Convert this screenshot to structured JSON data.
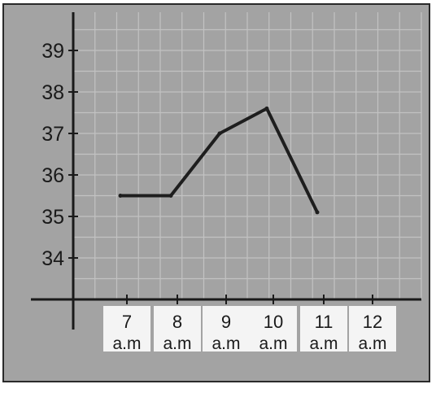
{
  "chart_data": {
    "type": "line",
    "title": "",
    "xlabel": "",
    "ylabel": "",
    "categories": [
      "7 a.m",
      "8 a.m",
      "9 a.m",
      "10 a.m",
      "11 a.m",
      "12 a.m"
    ],
    "x_tick_labels": [
      {
        "num": "7",
        "unit": "a.m"
      },
      {
        "num": "8",
        "unit": "a.m"
      },
      {
        "num": "9",
        "unit": "a.m"
      },
      {
        "num": "10",
        "unit": "a.m"
      },
      {
        "num": "11",
        "unit": "a.m"
      },
      {
        "num": "12",
        "unit": "a.m"
      }
    ],
    "y_ticks": [
      34,
      35,
      36,
      37,
      38,
      39
    ],
    "ylim": [
      33,
      40
    ],
    "series": [
      {
        "values": [
          35.5,
          35.5,
          37.0,
          37.6,
          35.1,
          null
        ]
      }
    ],
    "grid": true,
    "colors": {
      "background": "#a3a3a3",
      "grid": "#c2c2c2",
      "line": "#1e1e1e",
      "axis": "#1a1a1a",
      "label_box": "#f4f4f4",
      "text": "#1a1a1a",
      "border": "#2a2a2a"
    }
  }
}
